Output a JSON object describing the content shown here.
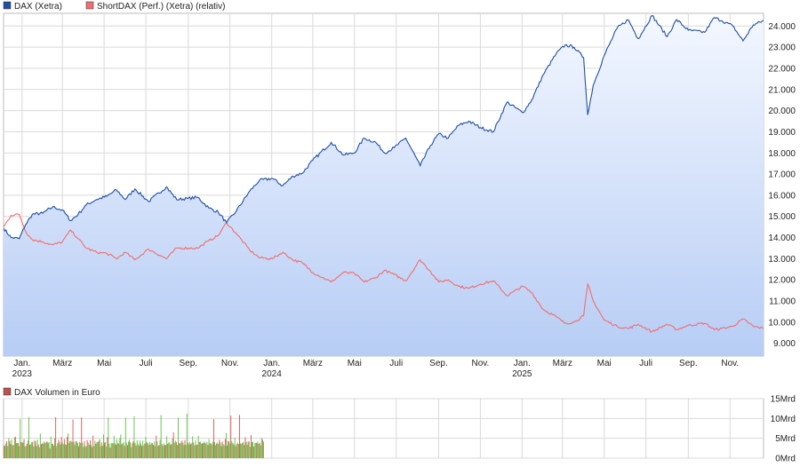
{
  "legend": {
    "items": [
      {
        "label": "DAX (Xetra)",
        "color": "#1f4fa3"
      },
      {
        "label": "ShortDAX (Perf.) (Xetra) (relativ)",
        "color": "#f26d6d"
      }
    ]
  },
  "volume_legend": {
    "label": "DAX Volumen in Euro",
    "color": "#c0504d"
  },
  "colors": {
    "dax_line": "#1f4fa3",
    "shortdax_line": "#f26d6d",
    "area_top": "#f3f7ff",
    "area_bottom": "#b7cdf5",
    "grid": "#d9d9d9",
    "volume_up": "#5cbf3a",
    "volume_down": "#d9534f"
  },
  "chart_data": [
    {
      "type": "line",
      "title": "",
      "grid": true,
      "legend_position": "top-left",
      "y_axis_side": "right",
      "ylim": [
        8400,
        24600
      ],
      "y_ticks": [
        9000,
        10000,
        11000,
        12000,
        13000,
        14000,
        15000,
        16000,
        17000,
        18000,
        19000,
        20000,
        21000,
        22000,
        23000,
        24000
      ],
      "y_tick_labels": [
        "9.000",
        "10.000",
        "11.000",
        "12.000",
        "13.000",
        "14.000",
        "15.000",
        "16.000",
        "17.000",
        "18.000",
        "19.000",
        "20.000",
        "21.000",
        "22.000",
        "23.000",
        "24.000"
      ],
      "x_ticks": [
        {
          "date": "2023-01-01",
          "label": "Jan.",
          "year": "2023"
        },
        {
          "date": "2023-03-01",
          "label": "März",
          "year": ""
        },
        {
          "date": "2023-05-01",
          "label": "Mai",
          "year": ""
        },
        {
          "date": "2023-07-01",
          "label": "Juli",
          "year": ""
        },
        {
          "date": "2023-09-01",
          "label": "Sep.",
          "year": ""
        },
        {
          "date": "2023-11-01",
          "label": "Nov.",
          "year": ""
        },
        {
          "date": "2024-01-01",
          "label": "Jan.",
          "year": "2024"
        },
        {
          "date": "2024-03-01",
          "label": "März",
          "year": ""
        },
        {
          "date": "2024-05-01",
          "label": "Mai",
          "year": ""
        },
        {
          "date": "2024-07-01",
          "label": "Juli",
          "year": ""
        },
        {
          "date": "2024-09-01",
          "label": "Sep.",
          "year": ""
        },
        {
          "date": "2024-11-01",
          "label": "Nov.",
          "year": ""
        },
        {
          "date": "2025-01-01",
          "label": "Jan.",
          "year": "2025"
        },
        {
          "date": "2025-03-01",
          "label": "März",
          "year": ""
        },
        {
          "date": "2025-05-01",
          "label": "Mai",
          "year": ""
        },
        {
          "date": "2025-07-01",
          "label": "Juli",
          "year": ""
        },
        {
          "date": "2025-09-01",
          "label": "Sep.",
          "year": ""
        },
        {
          "date": "2025-11-01",
          "label": "Nov.",
          "year": ""
        }
      ],
      "x_range": [
        "2022-12-05",
        "2025-12-20"
      ],
      "series": [
        {
          "name": "DAX (Xetra)",
          "points": [
            [
              "2022-12-05",
              14450
            ],
            [
              "2022-12-16",
              14000
            ],
            [
              "2022-12-28",
              13950
            ],
            [
              "2023-01-06",
              14600
            ],
            [
              "2023-01-16",
              15100
            ],
            [
              "2023-01-31",
              15150
            ],
            [
              "2023-02-15",
              15450
            ],
            [
              "2023-03-01",
              15300
            ],
            [
              "2023-03-13",
              14800
            ],
            [
              "2023-03-24",
              15100
            ],
            [
              "2023-04-05",
              15550
            ],
            [
              "2023-04-20",
              15800
            ],
            [
              "2023-05-05",
              15950
            ],
            [
              "2023-05-19",
              16250
            ],
            [
              "2023-06-01",
              15800
            ],
            [
              "2023-06-15",
              16300
            ],
            [
              "2023-07-05",
              15700
            ],
            [
              "2023-07-31",
              16400
            ],
            [
              "2023-08-15",
              15800
            ],
            [
              "2023-09-01",
              15850
            ],
            [
              "2023-09-15",
              15900
            ],
            [
              "2023-10-01",
              15400
            ],
            [
              "2023-10-15",
              15200
            ],
            [
              "2023-10-27",
              14700
            ],
            [
              "2023-11-10",
              15250
            ],
            [
              "2023-11-30",
              16200
            ],
            [
              "2023-12-14",
              16700
            ],
            [
              "2024-01-02",
              16800
            ],
            [
              "2024-01-17",
              16450
            ],
            [
              "2024-02-01",
              16900
            ],
            [
              "2024-02-15",
              17050
            ],
            [
              "2024-03-01",
              17650
            ],
            [
              "2024-03-28",
              18500
            ],
            [
              "2024-04-15",
              17900
            ],
            [
              "2024-05-01",
              18000
            ],
            [
              "2024-05-15",
              18700
            ],
            [
              "2024-06-01",
              18500
            ],
            [
              "2024-06-14",
              18000
            ],
            [
              "2024-06-28",
              18250
            ],
            [
              "2024-07-15",
              18700
            ],
            [
              "2024-08-05",
              17400
            ],
            [
              "2024-08-20",
              18350
            ],
            [
              "2024-09-01",
              18900
            ],
            [
              "2024-09-15",
              18700
            ],
            [
              "2024-09-30",
              19300
            ],
            [
              "2024-10-15",
              19500
            ],
            [
              "2024-11-01",
              19200
            ],
            [
              "2024-11-20",
              19000
            ],
            [
              "2024-12-10",
              20400
            ],
            [
              "2025-01-02",
              19900
            ],
            [
              "2025-01-15",
              20500
            ],
            [
              "2025-02-01",
              21700
            ],
            [
              "2025-02-20",
              22700
            ],
            [
              "2025-03-05",
              23100
            ],
            [
              "2025-03-18",
              23000
            ],
            [
              "2025-04-01",
              22500
            ],
            [
              "2025-04-07",
              19800
            ],
            [
              "2025-04-15",
              21200
            ],
            [
              "2025-05-01",
              22600
            ],
            [
              "2025-05-20",
              23900
            ],
            [
              "2025-06-05",
              24300
            ],
            [
              "2025-06-20",
              23400
            ],
            [
              "2025-07-10",
              24500
            ],
            [
              "2025-08-01",
              23500
            ],
            [
              "2025-08-15",
              24300
            ],
            [
              "2025-09-01",
              23800
            ],
            [
              "2025-09-25",
              23700
            ],
            [
              "2025-10-09",
              24400
            ],
            [
              "2025-10-20",
              24250
            ],
            [
              "2025-11-05",
              24000
            ],
            [
              "2025-11-20",
              23300
            ],
            [
              "2025-12-05",
              24050
            ],
            [
              "2025-12-20",
              24250
            ]
          ]
        },
        {
          "name": "ShortDAX (Perf.) (Xetra) (relativ)",
          "points": [
            [
              "2022-12-05",
              14500
            ],
            [
              "2022-12-16",
              15050
            ],
            [
              "2022-12-28",
              15100
            ],
            [
              "2023-01-06",
              14300
            ],
            [
              "2023-01-16",
              13900
            ],
            [
              "2023-01-31",
              13800
            ],
            [
              "2023-02-15",
              13650
            ],
            [
              "2023-03-01",
              13800
            ],
            [
              "2023-03-13",
              14350
            ],
            [
              "2023-03-24",
              13950
            ],
            [
              "2023-04-05",
              13500
            ],
            [
              "2023-04-20",
              13300
            ],
            [
              "2023-05-05",
              13250
            ],
            [
              "2023-05-19",
              13000
            ],
            [
              "2023-06-01",
              13300
            ],
            [
              "2023-06-15",
              12950
            ],
            [
              "2023-07-05",
              13450
            ],
            [
              "2023-07-31",
              13000
            ],
            [
              "2023-08-15",
              13500
            ],
            [
              "2023-09-01",
              13500
            ],
            [
              "2023-09-15",
              13500
            ],
            [
              "2023-10-01",
              13850
            ],
            [
              "2023-10-15",
              14100
            ],
            [
              "2023-10-27",
              14700
            ],
            [
              "2023-11-10",
              14200
            ],
            [
              "2023-11-30",
              13400
            ],
            [
              "2023-12-14",
              13050
            ],
            [
              "2024-01-02",
              13000
            ],
            [
              "2024-01-17",
              13300
            ],
            [
              "2024-02-01",
              12950
            ],
            [
              "2024-02-15",
              12800
            ],
            [
              "2024-03-01",
              12350
            ],
            [
              "2024-03-28",
              11900
            ],
            [
              "2024-04-15",
              12350
            ],
            [
              "2024-05-01",
              12300
            ],
            [
              "2024-05-15",
              11900
            ],
            [
              "2024-06-01",
              12100
            ],
            [
              "2024-06-14",
              12450
            ],
            [
              "2024-06-28",
              12250
            ],
            [
              "2024-07-15",
              11950
            ],
            [
              "2024-08-05",
              12950
            ],
            [
              "2024-08-20",
              12400
            ],
            [
              "2024-09-01",
              11900
            ],
            [
              "2024-09-15",
              12000
            ],
            [
              "2024-09-30",
              11700
            ],
            [
              "2024-10-15",
              11600
            ],
            [
              "2024-11-01",
              11800
            ],
            [
              "2024-11-20",
              11950
            ],
            [
              "2024-12-10",
              11250
            ],
            [
              "2025-01-02",
              11700
            ],
            [
              "2025-01-15",
              11400
            ],
            [
              "2025-02-01",
              10600
            ],
            [
              "2025-02-20",
              10250
            ],
            [
              "2025-03-05",
              9950
            ],
            [
              "2025-03-18",
              10000
            ],
            [
              "2025-04-01",
              10300
            ],
            [
              "2025-04-07",
              11800
            ],
            [
              "2025-04-15",
              11000
            ],
            [
              "2025-05-01",
              10100
            ],
            [
              "2025-05-20",
              9800
            ],
            [
              "2025-06-05",
              9700
            ],
            [
              "2025-06-20",
              9900
            ],
            [
              "2025-07-10",
              9550
            ],
            [
              "2025-08-01",
              9900
            ],
            [
              "2025-08-15",
              9650
            ],
            [
              "2025-09-01",
              9850
            ],
            [
              "2025-09-25",
              9950
            ],
            [
              "2025-10-09",
              9650
            ],
            [
              "2025-10-20",
              9700
            ],
            [
              "2025-11-05",
              9800
            ],
            [
              "2025-11-20",
              10150
            ],
            [
              "2025-12-05",
              9800
            ],
            [
              "2025-12-20",
              9700
            ]
          ]
        }
      ]
    },
    {
      "type": "bar",
      "title": "DAX Volumen in Euro",
      "grid": true,
      "y_axis_side": "right",
      "ylim": [
        0,
        15
      ],
      "y_ticks": [
        0,
        5,
        10,
        15
      ],
      "y_tick_labels": [
        "0Mrd",
        "5Mrd",
        "10Mrd",
        "15Mrd"
      ],
      "x_range": [
        "2022-12-05",
        "2025-12-20"
      ],
      "visible_until": "2023-12-20",
      "series": [
        {
          "name": "DAX Volumen in Euro",
          "values_in_mrd_sample": [
            3.6,
            3.2,
            4.1,
            3.8,
            3.4,
            5.2,
            3.9,
            3.3,
            4.4,
            3.7,
            3.1,
            4.8,
            6.0,
            3.5,
            3.9,
            4.2,
            3.6,
            10.2,
            4.1,
            3.4,
            3.8,
            4.6,
            3.5,
            3.2,
            4.0,
            3.9,
            10.8,
            3.7,
            3.3,
            4.3,
            3.6,
            3.4,
            4.9,
            3.8,
            3.1,
            4.1,
            3.7,
            3.3,
            5.8,
            3.6,
            3.9,
            3.2,
            4.0,
            3.5,
            3.8,
            4.4,
            3.4,
            3.7,
            3.1,
            5.4,
            4.2,
            3.6,
            3.3,
            4.7,
            10.3
          ]
        }
      ]
    }
  ]
}
